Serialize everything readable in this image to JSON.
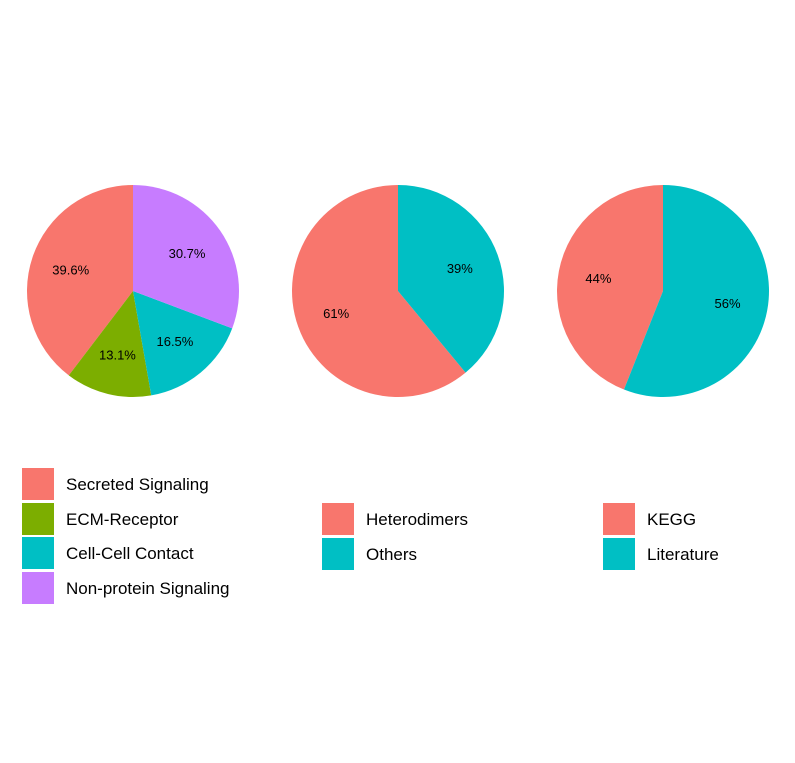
{
  "chart_data": [
    {
      "type": "pie",
      "categories": [
        "Secreted Signaling",
        "ECM-Receptor",
        "Cell-Cell Contact",
        "Non-protein Signaling"
      ],
      "values": [
        39.6,
        13.1,
        16.5,
        30.7
      ],
      "labels": [
        "39.6%",
        "13.1%",
        "16.5%",
        "30.7%"
      ],
      "colors": [
        "#F8766D",
        "#7CAE00",
        "#00BFC4",
        "#C77CFF"
      ],
      "start": "12 o'clock",
      "direction": "counterclockwise",
      "legend": "bottom"
    },
    {
      "type": "pie",
      "categories": [
        "Heterodimers",
        "Others"
      ],
      "values": [
        61,
        39
      ],
      "labels": [
        "61%",
        "39%"
      ],
      "colors": [
        "#F8766D",
        "#00BFC4"
      ],
      "start": "12 o'clock",
      "direction": "counterclockwise",
      "legend": "bottom"
    },
    {
      "type": "pie",
      "categories": [
        "KEGG",
        "Literature"
      ],
      "values": [
        44,
        56
      ],
      "labels": [
        "44%",
        "56%"
      ],
      "colors": [
        "#F8766D",
        "#00BFC4"
      ],
      "start": "12 o'clock",
      "direction": "counterclockwise",
      "legend": "bottom"
    }
  ]
}
